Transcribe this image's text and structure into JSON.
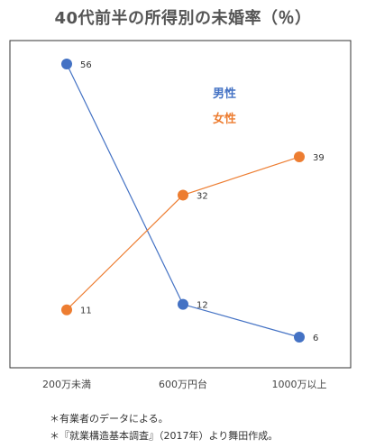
{
  "title": "40代前半の所得別の未婚率（％）",
  "chart_data": {
    "type": "line",
    "title": "40代前半の所得別の未婚率（％）",
    "categories": [
      "200万未満",
      "600万円台",
      "1000万以上"
    ],
    "series": [
      {
        "name": "男性",
        "color": "#4472c4",
        "values": [
          56,
          12,
          6
        ]
      },
      {
        "name": "女性",
        "color": "#ed7d31",
        "values": [
          11,
          32,
          39
        ]
      }
    ],
    "data_labels": true,
    "ylim": [
      0,
      60
    ],
    "grid": false,
    "legend_position": "top-right"
  },
  "notes": [
    "＊有業者のデータによる。",
    "＊『就業構造基本調査』（2017年）より舞田作成。"
  ]
}
